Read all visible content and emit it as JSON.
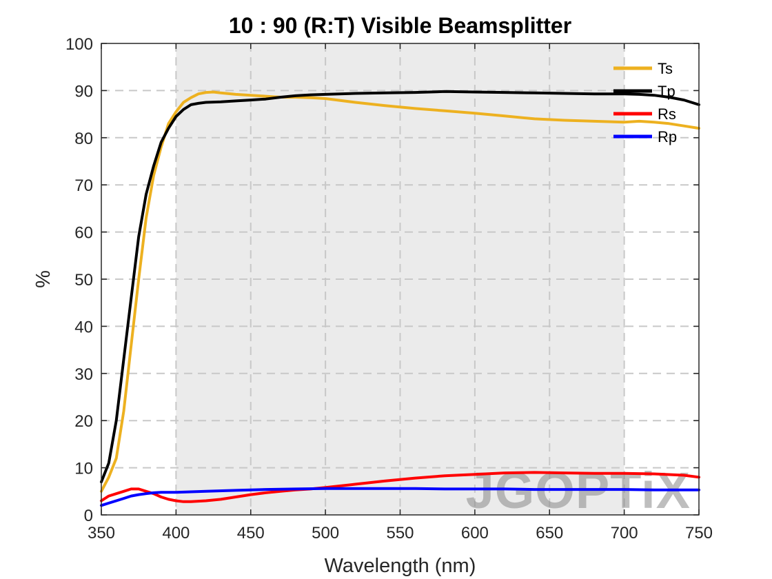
{
  "watermark": "JGOPTiX",
  "chart_data": {
    "type": "line",
    "title": "10 : 90 (R:T) Visible Beamsplitter",
    "xlabel": "Wavelength (nm)",
    "ylabel": "%",
    "xlim": [
      350,
      750
    ],
    "ylim": [
      0,
      100
    ],
    "xticks": [
      350,
      400,
      450,
      500,
      550,
      600,
      650,
      700,
      750
    ],
    "yticks": [
      0,
      10,
      20,
      30,
      40,
      50,
      60,
      70,
      80,
      90,
      100
    ],
    "grid": true,
    "shaded_region": [
      400,
      700
    ],
    "legend_position": "top-right",
    "series": [
      {
        "name": "Ts",
        "color": "#edb120",
        "x": [
          350,
          355,
          360,
          365,
          370,
          375,
          380,
          385,
          390,
          395,
          400,
          405,
          410,
          415,
          420,
          425,
          430,
          440,
          450,
          460,
          470,
          480,
          490,
          500,
          520,
          540,
          560,
          580,
          600,
          620,
          640,
          660,
          680,
          700,
          710,
          720,
          730,
          740,
          750
        ],
        "y": [
          5,
          8,
          12,
          22,
          36,
          50,
          63,
          72,
          78,
          83,
          85.5,
          87.5,
          88.5,
          89.3,
          89.6,
          89.7,
          89.5,
          89.2,
          89.0,
          88.8,
          88.6,
          88.6,
          88.5,
          88.3,
          87.5,
          86.8,
          86.2,
          85.7,
          85.2,
          84.6,
          84.0,
          83.7,
          83.5,
          83.3,
          83.5,
          83.3,
          83.0,
          82.5,
          82.0
        ]
      },
      {
        "name": "Tp",
        "color": "#000000",
        "x": [
          350,
          355,
          360,
          365,
          370,
          375,
          380,
          385,
          390,
          395,
          400,
          405,
          410,
          415,
          420,
          430,
          440,
          450,
          460,
          470,
          480,
          490,
          500,
          520,
          540,
          560,
          580,
          600,
          620,
          640,
          660,
          680,
          700,
          710,
          720,
          730,
          740,
          750
        ],
        "y": [
          7,
          11,
          20,
          33,
          46,
          59,
          68,
          74,
          79,
          82,
          84.5,
          86.0,
          87.0,
          87.3,
          87.5,
          87.6,
          87.8,
          88.0,
          88.2,
          88.6,
          88.9,
          89.1,
          89.2,
          89.4,
          89.5,
          89.6,
          89.8,
          89.7,
          89.6,
          89.5,
          89.4,
          89.3,
          89.3,
          89.2,
          89.0,
          88.6,
          88.0,
          87.0
        ]
      },
      {
        "name": "Rs",
        "color": "#ff0000",
        "x": [
          350,
          355,
          360,
          365,
          370,
          375,
          380,
          385,
          390,
          395,
          400,
          405,
          410,
          420,
          430,
          440,
          450,
          460,
          470,
          480,
          490,
          500,
          520,
          540,
          560,
          580,
          600,
          620,
          640,
          660,
          680,
          700,
          720,
          740,
          750
        ],
        "y": [
          3,
          4,
          4.5,
          5,
          5.5,
          5.5,
          5.0,
          4.5,
          3.8,
          3.3,
          3.0,
          2.8,
          2.8,
          3.0,
          3.3,
          3.8,
          4.3,
          4.7,
          5.0,
          5.3,
          5.5,
          5.8,
          6.5,
          7.2,
          7.8,
          8.3,
          8.6,
          8.9,
          9.0,
          8.9,
          8.8,
          8.8,
          8.7,
          8.4,
          8.0
        ]
      },
      {
        "name": "Rp",
        "color": "#0000ff",
        "x": [
          350,
          355,
          360,
          365,
          370,
          375,
          380,
          385,
          390,
          400,
          420,
          440,
          460,
          480,
          500,
          520,
          540,
          560,
          580,
          600,
          620,
          640,
          660,
          680,
          700,
          720,
          750
        ],
        "y": [
          2,
          2.5,
          3,
          3.5,
          4.0,
          4.3,
          4.5,
          4.7,
          4.8,
          4.8,
          5.0,
          5.2,
          5.4,
          5.5,
          5.6,
          5.6,
          5.6,
          5.6,
          5.5,
          5.5,
          5.5,
          5.4,
          5.4,
          5.4,
          5.4,
          5.3,
          5.3
        ]
      }
    ]
  }
}
